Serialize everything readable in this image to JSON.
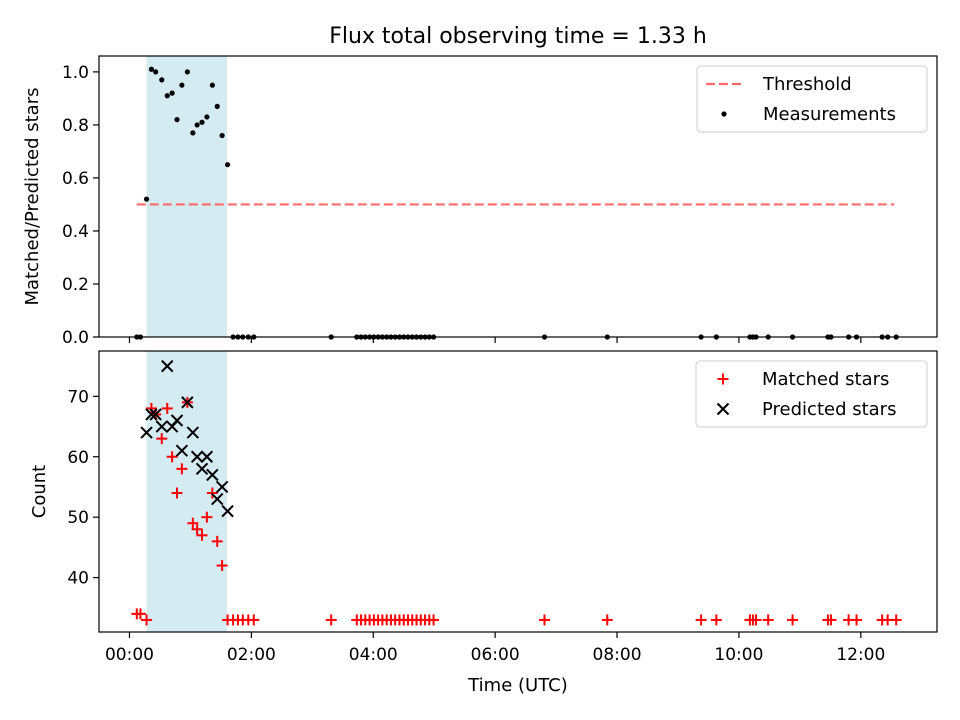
{
  "title": "Flux total observing time = 1.33 h",
  "chart_data": [
    {
      "type": "scatter",
      "panel": "top",
      "title": "Flux total observing time = 1.33 h",
      "xlabel": "",
      "ylabel": "Matched/Predicted stars",
      "xlim_hours": [
        -0.5,
        13.25
      ],
      "ylim": [
        0,
        1.06
      ],
      "yticks": [
        0.0,
        0.2,
        0.4,
        0.6,
        0.8,
        1.0
      ],
      "ytick_labels": [
        "0.0",
        "0.2",
        "0.4",
        "0.6",
        "0.8",
        "1.0"
      ],
      "highlight_span_hours": [
        0.28,
        1.6
      ],
      "highlight_color": "#add8e6",
      "legend": {
        "placement": "upper right",
        "entries": [
          {
            "label": "Threshold",
            "style": "dashed-line",
            "color": "#ff6b6b"
          },
          {
            "label": "Measurements",
            "style": "dot",
            "color": "#000000"
          }
        ]
      },
      "series": [
        {
          "name": "Threshold",
          "kind": "line",
          "color": "#ff6b6b",
          "x": [
            0.12,
            12.55
          ],
          "y": [
            0.5,
            0.5
          ]
        },
        {
          "name": "Measurements",
          "kind": "scatter",
          "color": "#000000",
          "x": [
            0.12,
            0.18,
            0.28,
            0.36,
            0.43,
            0.53,
            0.62,
            0.7,
            0.78,
            0.86,
            0.95,
            1.04,
            1.11,
            1.19,
            1.27,
            1.36,
            1.44,
            1.52,
            1.61,
            1.7,
            1.78,
            1.86,
            1.95,
            2.04,
            3.31,
            3.73,
            3.8,
            3.87,
            3.94,
            4.01,
            4.08,
            4.15,
            4.22,
            4.29,
            4.36,
            4.43,
            4.5,
            4.57,
            4.64,
            4.71,
            4.78,
            4.85,
            4.92,
            4.99,
            6.81,
            7.84,
            9.38,
            9.63,
            10.18,
            10.23,
            10.28,
            10.48,
            10.88,
            11.46,
            11.51,
            11.8,
            11.93,
            12.35,
            12.44,
            12.58
          ],
          "y": [
            0.0,
            0.0,
            0.52,
            1.01,
            1.0,
            0.97,
            0.91,
            0.92,
            0.82,
            0.95,
            1.0,
            0.77,
            0.8,
            0.81,
            0.83,
            0.95,
            0.87,
            0.76,
            0.65,
            0.0,
            0.0,
            0.0,
            0.0,
            0.0,
            0.0,
            0.0,
            0.0,
            0.0,
            0.0,
            0.0,
            0.0,
            0.0,
            0.0,
            0.0,
            0.0,
            0.0,
            0.0,
            0.0,
            0.0,
            0.0,
            0.0,
            0.0,
            0.0,
            0.0,
            0.0,
            0.0,
            0.0,
            0.0,
            0.0,
            0.0,
            0.0,
            0.0,
            0.0,
            0.0,
            0.0,
            0.0,
            0.0,
            0.0,
            0.0,
            0.0
          ]
        }
      ]
    },
    {
      "type": "scatter",
      "panel": "bottom",
      "title": "",
      "xlabel": "Time (UTC)",
      "ylabel": "Count",
      "xlim_hours": [
        -0.5,
        13.25
      ],
      "ylim": [
        31,
        77.5
      ],
      "yticks": [
        40,
        50,
        60,
        70
      ],
      "ytick_labels": [
        "40",
        "50",
        "60",
        "70"
      ],
      "xticks_hours": [
        0,
        2,
        4,
        6,
        8,
        10,
        12
      ],
      "xtick_labels": [
        "00:00",
        "02:00",
        "04:00",
        "06:00",
        "08:00",
        "10:00",
        "12:00"
      ],
      "highlight_span_hours": [
        0.28,
        1.6
      ],
      "highlight_color": "#add8e6",
      "legend": {
        "placement": "upper right",
        "entries": [
          {
            "label": "Matched stars",
            "style": "plus",
            "color": "#ff0000"
          },
          {
            "label": "Predicted stars",
            "style": "x",
            "color": "#000000"
          }
        ]
      },
      "series": [
        {
          "name": "Matched stars",
          "kind": "plus",
          "color": "#ff0000",
          "x": [
            0.12,
            0.18,
            0.28,
            0.36,
            0.43,
            0.53,
            0.62,
            0.7,
            0.78,
            0.86,
            0.95,
            1.04,
            1.11,
            1.19,
            1.27,
            1.36,
            1.44,
            1.52,
            1.61,
            1.7,
            1.78,
            1.86,
            1.95,
            2.04,
            3.31,
            3.73,
            3.8,
            3.87,
            3.94,
            4.01,
            4.08,
            4.15,
            4.22,
            4.29,
            4.36,
            4.43,
            4.5,
            4.57,
            4.64,
            4.71,
            4.78,
            4.85,
            4.92,
            4.99,
            6.81,
            7.84,
            9.38,
            9.63,
            10.18,
            10.23,
            10.28,
            10.48,
            10.88,
            11.46,
            11.51,
            11.8,
            11.93,
            12.35,
            12.44,
            12.58
          ],
          "y": [
            34,
            34,
            33,
            68,
            67,
            63,
            68,
            60,
            54,
            58,
            69,
            49,
            48,
            47,
            50,
            54,
            46,
            42,
            33,
            33,
            33,
            33,
            33,
            33,
            33,
            33,
            33,
            33,
            33,
            33,
            33,
            33,
            33,
            33,
            33,
            33,
            33,
            33,
            33,
            33,
            33,
            33,
            33,
            33,
            33,
            33,
            33,
            33,
            33,
            33,
            33,
            33,
            33,
            33,
            33,
            33,
            33,
            33,
            33,
            33
          ]
        },
        {
          "name": "Predicted stars",
          "kind": "x",
          "color": "#000000",
          "x": [
            0.28,
            0.36,
            0.43,
            0.53,
            0.62,
            0.7,
            0.78,
            0.86,
            0.95,
            1.04,
            1.11,
            1.19,
            1.27,
            1.36,
            1.44,
            1.52,
            1.61
          ],
          "y": [
            64,
            67,
            67,
            65,
            75,
            65,
            66,
            61,
            69,
            64,
            60,
            58,
            60,
            57,
            53,
            55,
            51
          ]
        }
      ]
    }
  ]
}
